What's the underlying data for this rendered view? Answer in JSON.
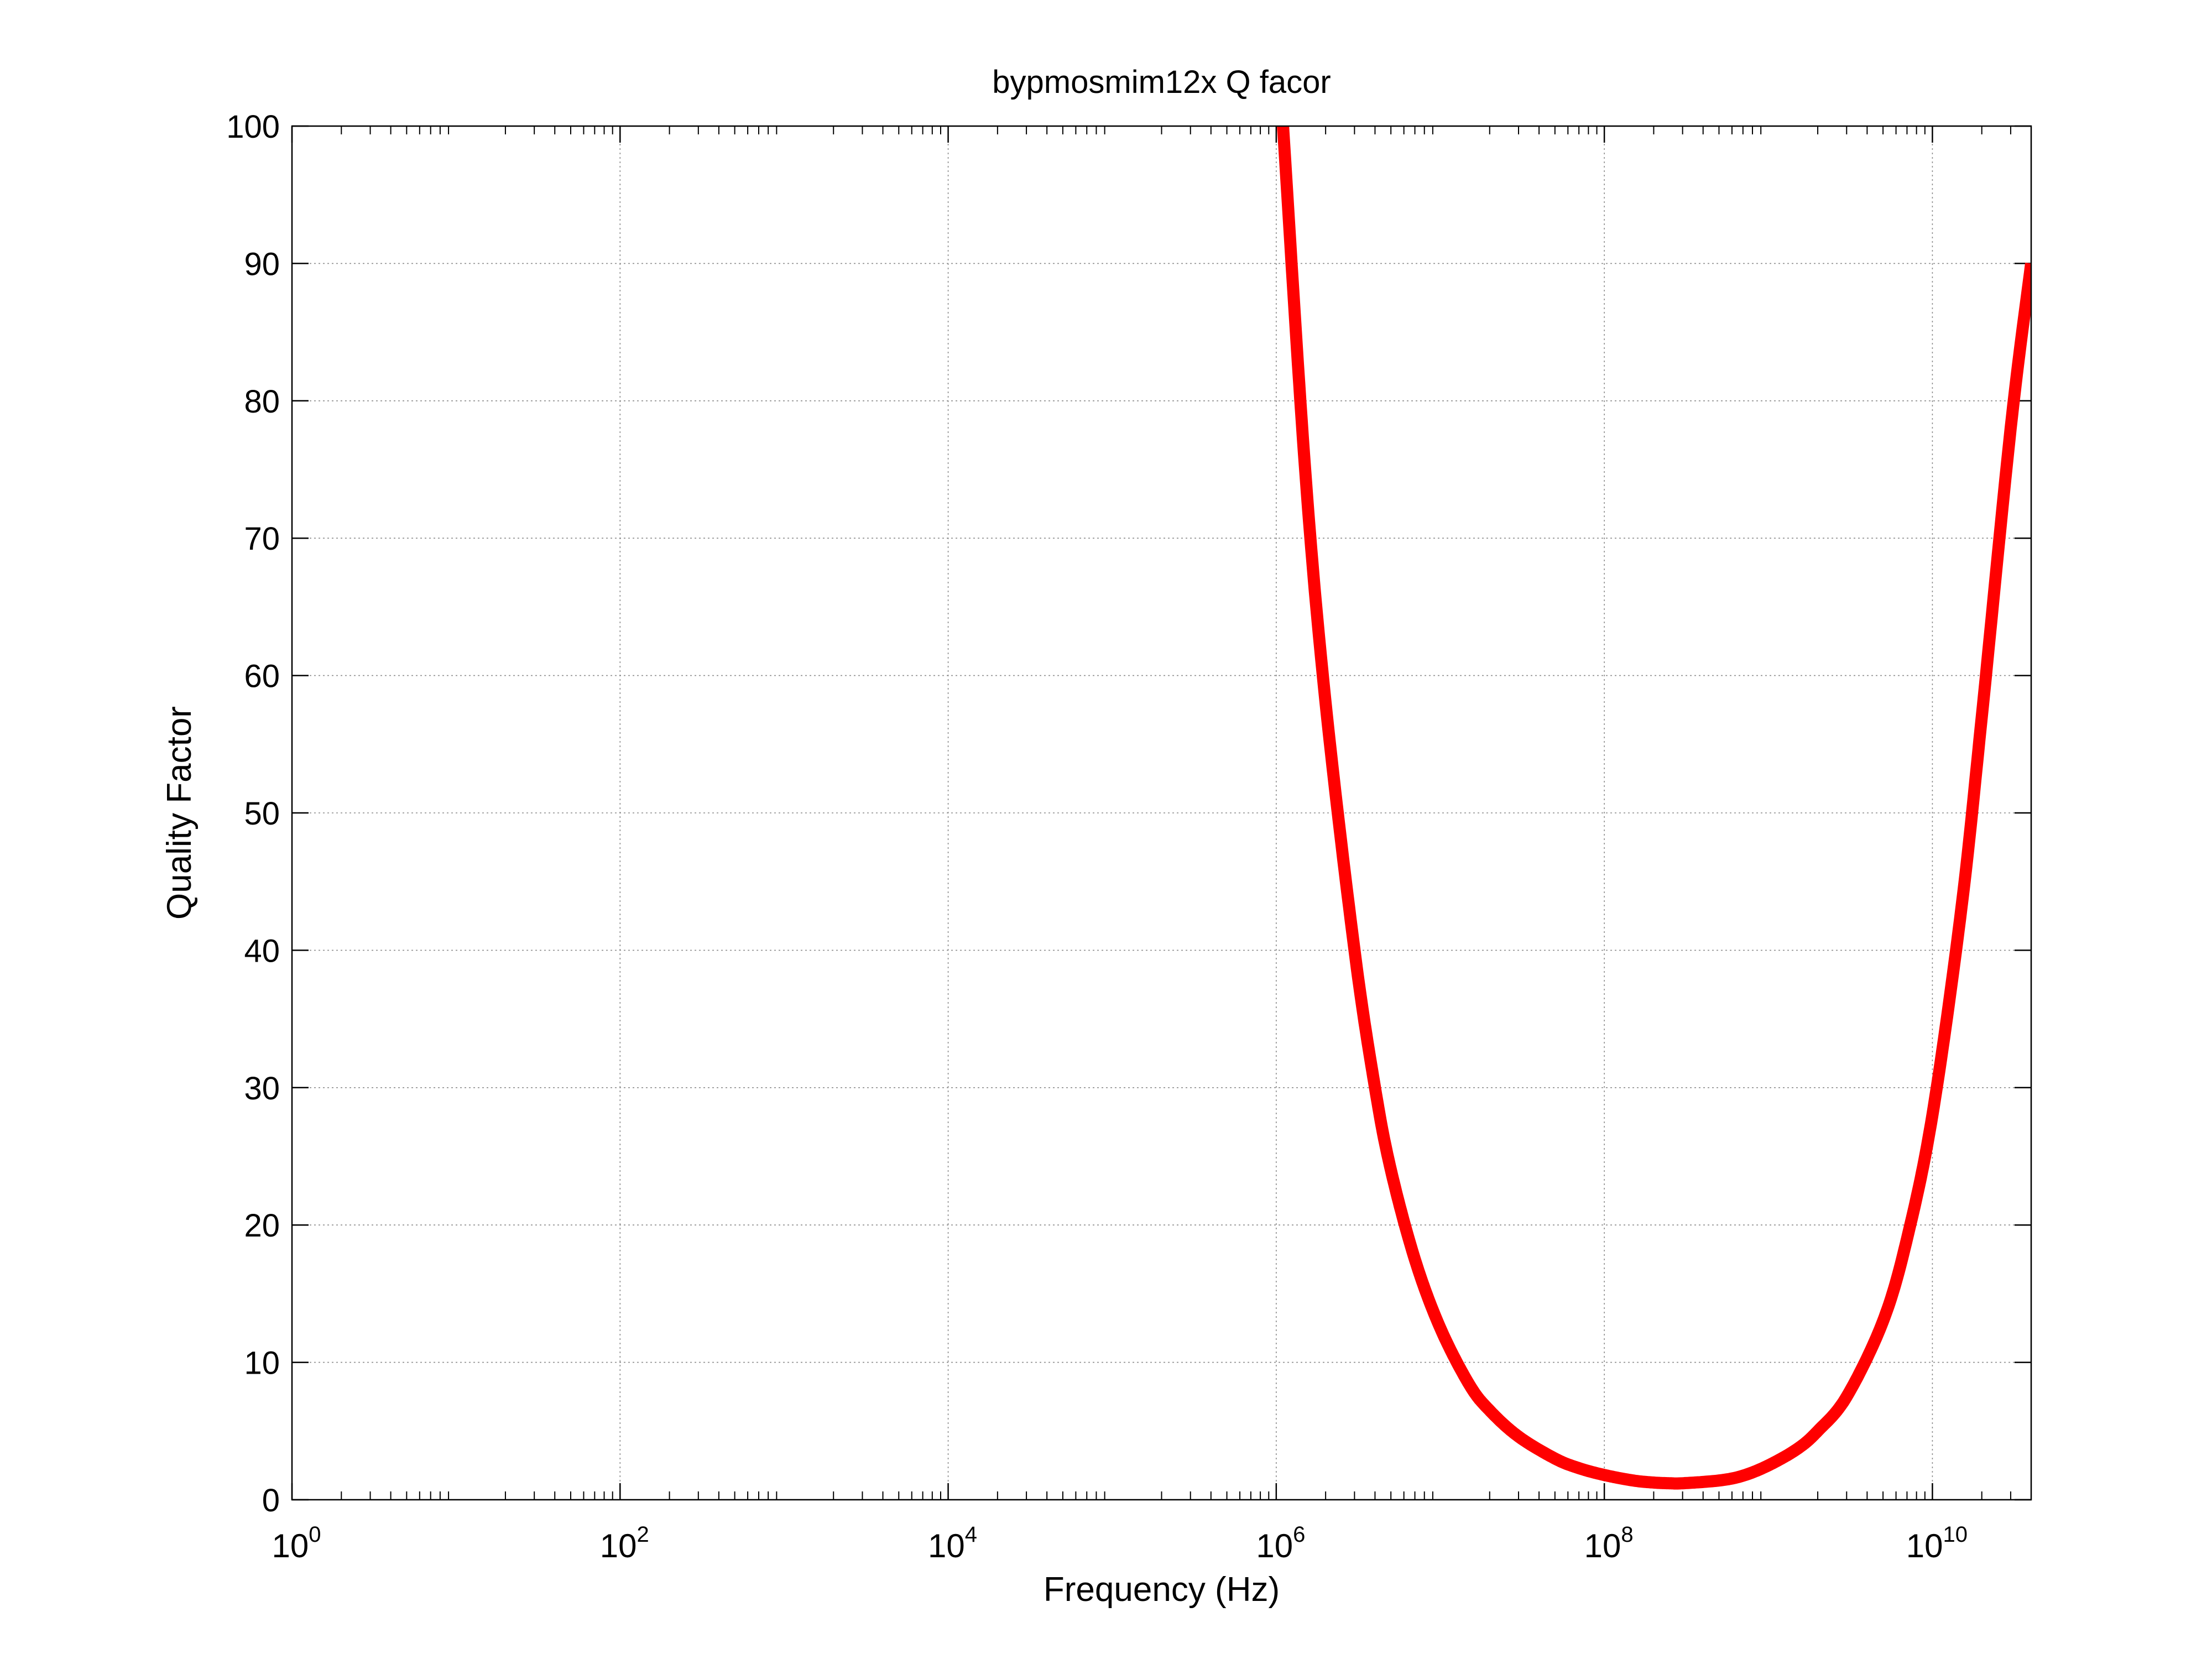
{
  "chart_data": {
    "type": "line",
    "title": "bypmosmim12x Q facor",
    "xlabel": "Frequency (Hz)",
    "ylabel": "Quality Factor",
    "x_scale": "log",
    "xlim": [
      1,
      40000000000
    ],
    "ylim": [
      0,
      100
    ],
    "grid": true,
    "x_ticks": [
      {
        "base": "10",
        "exp": "0",
        "value": 1
      },
      {
        "base": "10",
        "exp": "2",
        "value": 100
      },
      {
        "base": "10",
        "exp": "4",
        "value": 10000
      },
      {
        "base": "10",
        "exp": "6",
        "value": 1000000
      },
      {
        "base": "10",
        "exp": "8",
        "value": 100000000
      },
      {
        "base": "10",
        "exp": "10",
        "value": 10000000000
      }
    ],
    "y_ticks": [
      "0",
      "10",
      "20",
      "30",
      "40",
      "50",
      "60",
      "70",
      "80",
      "90",
      "100"
    ],
    "series": [
      {
        "color": "#ff0000",
        "x": [
          1100000,
          1500000,
          2000000,
          3000000,
          4000000,
          5000000,
          7000000,
          10000000,
          15000000,
          20000000,
          30000000,
          50000000,
          70000000,
          100000000,
          150000000,
          200000000,
          250000000,
          300000000,
          500000000,
          700000000,
          1000000000,
          1500000000,
          2000000000,
          3000000000,
          5000000000,
          7000000000,
          10000000000,
          15000000000,
          20000000000,
          30000000000,
          40000000000
        ],
        "y": [
          100,
          75,
          58,
          40,
          30,
          24,
          17.5,
          12.5,
          8.4,
          6.5,
          4.6,
          3,
          2.3,
          1.8,
          1.4,
          1.25,
          1.2,
          1.2,
          1.4,
          1.75,
          2.5,
          3.7,
          5,
          7.5,
          13,
          19,
          28,
          43,
          57,
          78,
          90
        ]
      }
    ]
  }
}
